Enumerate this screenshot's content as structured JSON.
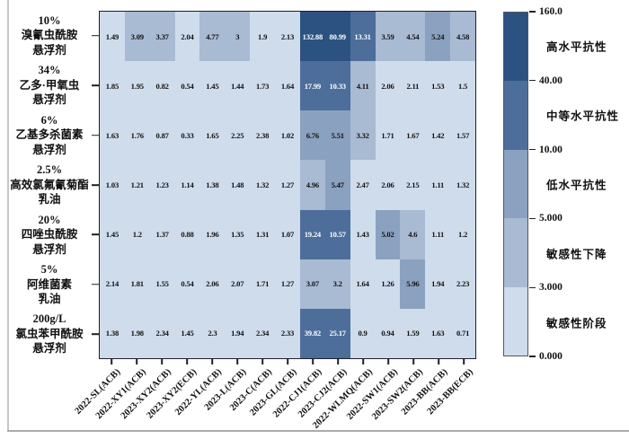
{
  "chart_data": {
    "type": "heatmap",
    "columns": [
      "2022-SL(ACB)",
      "2022-XY1(ACB)",
      "2023-XY2(ACB)",
      "2023-XY2(ECB)",
      "2022-YL(ACB)",
      "2023-L(ACB)",
      "2023-C(ACB)",
      "2023-GL(ACB)",
      "2022-CJ1(ACB)",
      "2023-CJ2(ACB)",
      "2022-WLMQ(ACB)",
      "2022-SW1(ACB)",
      "2023-SW2(ACB)",
      "2023-BB(ACB)",
      "2023-BB(ECB)"
    ],
    "rows": [
      {
        "label_lines": [
          "10%",
          "溴氰虫酰胺",
          "悬浮剂"
        ],
        "values": [
          "1.49",
          "3.09",
          "3.37",
          "2.04",
          "4.77",
          "3",
          "1.9",
          "2.13",
          "132.88",
          "80.99",
          "13.31",
          "3.59",
          "4.54",
          "5.24",
          "4.58"
        ]
      },
      {
        "label_lines": [
          "34%",
          "乙多·甲氧虫",
          "悬浮剂"
        ],
        "values": [
          "1.85",
          "1.95",
          "0.82",
          "0.54",
          "1.45",
          "1.44",
          "1.73",
          "1.64",
          "17.99",
          "10.33",
          "4.11",
          "2.06",
          "2.11",
          "1.53",
          "1.5"
        ]
      },
      {
        "label_lines": [
          "6%",
          "乙基多杀菌素",
          "悬浮剂"
        ],
        "values": [
          "1.63",
          "1.76",
          "0.87",
          "0.33",
          "1.65",
          "2.25",
          "2.38",
          "1.02",
          "6.76",
          "5.51",
          "3.32",
          "1.71",
          "1.67",
          "1.42",
          "1.57"
        ]
      },
      {
        "label_lines": [
          "2.5%",
          "高效氯氟氰菊酯",
          "乳油"
        ],
        "values": [
          "1.03",
          "1.21",
          "1.23",
          "1.14",
          "1.38",
          "1.48",
          "1.32",
          "1.27",
          "4.96",
          "5.47",
          "2.47",
          "2.06",
          "2.15",
          "1.11",
          "1.32"
        ]
      },
      {
        "label_lines": [
          "20%",
          "四唑虫酰胺",
          "悬浮剂"
        ],
        "values": [
          "1.45",
          "1.2",
          "1.37",
          "0.88",
          "1.96",
          "1.35",
          "1.31",
          "1.07",
          "19.24",
          "10.57",
          "1.43",
          "5.02",
          "4.6",
          "1.11",
          "1.2"
        ]
      },
      {
        "label_lines": [
          "5%",
          "阿维菌素",
          "乳油"
        ],
        "values": [
          "2.14",
          "1.81",
          "1.55",
          "0.54",
          "2.06",
          "2.07",
          "1.71",
          "1.27",
          "3.07",
          "3.2",
          "1.64",
          "1.26",
          "5.96",
          "1.94",
          "2.23"
        ]
      },
      {
        "label_lines": [
          "200g/L",
          "氯虫苯甲酰胺",
          "悬浮剂"
        ],
        "values": [
          "1.38",
          "1.98",
          "2.34",
          "1.45",
          "2.3",
          "1.94",
          "2.34",
          "2.33",
          "39.82",
          "25.17",
          "0.9",
          "0.94",
          "1.59",
          "1.63",
          "0.71"
        ]
      }
    ],
    "colorbar": {
      "tick_labels": [
        "160.0",
        "40.00",
        "10.00",
        "5.000",
        "3.000",
        "0.000"
      ],
      "categories": [
        "高水平抗性",
        "中等水平抗性",
        "低水平抗性",
        "敏感性下降",
        "敏感性阶段"
      ],
      "bins": [
        {
          "min": 0,
          "max": 3,
          "color": "#cfdcec"
        },
        {
          "min": 3,
          "max": 5,
          "color": "#a9bad3"
        },
        {
          "min": 5,
          "max": 10,
          "color": "#8ba1c0"
        },
        {
          "min": 10,
          "max": 40,
          "color": "#4d6d9b"
        },
        {
          "min": 40,
          "max": 160,
          "color": "#2b5280"
        }
      ]
    }
  }
}
